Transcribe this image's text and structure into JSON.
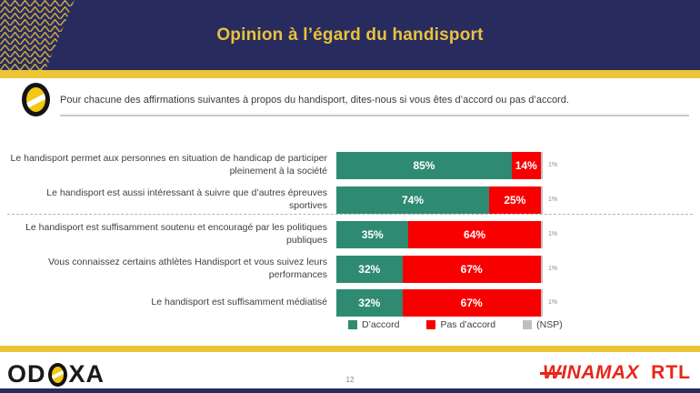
{
  "slide": {
    "title": "Opinion à l’égard du handisport",
    "question": "Pour chacune des affirmations suivantes à propos du handisport, dites-nous si vous êtes d’accord ou pas d’accord.",
    "page_number": "12"
  },
  "colors": {
    "navy": "#272b5e",
    "gold": "#eec437",
    "agree_green": "#2e8b72",
    "disagree_red": "#f80000",
    "nsp_gray": "#bfbfbf",
    "brand_red": "#e8251a"
  },
  "chart_data": {
    "type": "bar",
    "orientation": "horizontal_stacked",
    "unit": "%",
    "xlim": [
      0,
      100
    ],
    "grid": false,
    "legend_position": "bottom",
    "categories": [
      "Le handisport permet aux personnes en situation de handicap de participer pleinement à la société",
      "Le handisport est aussi intéressant à suivre que d’autres épreuves sportives",
      "Le handisport est suffisamment soutenu et encouragé par les politiques publiques",
      "Vous connaissez certains athlètes Handisport et vous suivez leurs performances",
      "Le handisport est suffisamment médiatisé"
    ],
    "series": [
      {
        "name": "D’accord",
        "color": "#2e8b72",
        "values": [
          85,
          74,
          35,
          32,
          32
        ]
      },
      {
        "name": "Pas d’accord",
        "color": "#f80000",
        "values": [
          14,
          25,
          64,
          67,
          67
        ]
      },
      {
        "name": "(NSP)",
        "color": "#bfbfbf",
        "values": [
          1,
          1,
          1,
          1,
          1
        ]
      }
    ],
    "rows": [
      {
        "label": "Le handisport permet aux personnes en situation de handicap de participer pleinement à la société",
        "agree": "85%",
        "disagree": "14%",
        "nsp": "1%"
      },
      {
        "label": "Le handisport est aussi intéressant à suivre que d’autres épreuves sportives",
        "agree": "74%",
        "disagree": "25%",
        "nsp": "1%"
      },
      {
        "label": "Le handisport est suffisamment soutenu et encouragé par les politiques publiques",
        "agree": "35%",
        "disagree": "64%",
        "nsp": "1%"
      },
      {
        "label": "Vous connaissez certains athlètes Handisport et vous suivez leurs performances",
        "agree": "32%",
        "disagree": "67%",
        "nsp": "1%"
      },
      {
        "label": "Le handisport est suffisamment médiatisé",
        "agree": "32%",
        "disagree": "67%",
        "nsp": "1%"
      }
    ],
    "legend": [
      {
        "label": "D’accord",
        "color": "#2e8b72"
      },
      {
        "label": "Pas d’accord",
        "color": "#f80000"
      },
      {
        "label": "(NSP)",
        "color": "#bfbfbf"
      }
    ]
  },
  "branding": {
    "odoxa_prefix": "OD",
    "odoxa_suffix": "XA",
    "winamax_first": "W",
    "winamax_rest": "INAMAX",
    "rtl": "RTL"
  }
}
